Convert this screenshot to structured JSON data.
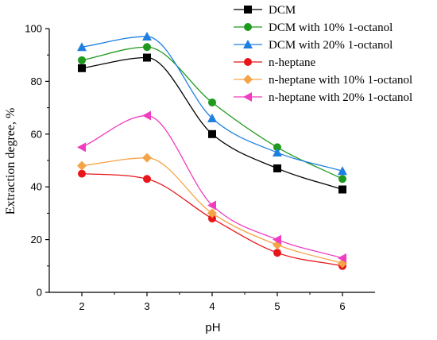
{
  "chart_data": {
    "type": "line",
    "xlabel": "pH",
    "ylabel": "Extraction degree, %",
    "x": [
      2,
      3,
      4,
      5,
      6
    ],
    "xlim": [
      1.5,
      6.5
    ],
    "ylim": [
      0,
      100
    ],
    "xticks": [
      "2",
      "3",
      "4",
      "5",
      "6"
    ],
    "yticks": [
      "0",
      "20",
      "40",
      "60",
      "80",
      "100"
    ],
    "grid": false,
    "legend_position": "top-right",
    "smooth": true,
    "series": [
      {
        "name": "DCM",
        "values": [
          85,
          89,
          60,
          47,
          39
        ],
        "color": "#000000",
        "marker": "square"
      },
      {
        "name": "DCM with 10% 1-octanol",
        "values": [
          88,
          93,
          72,
          55,
          43
        ],
        "color": "#1f9a1f",
        "marker": "circle"
      },
      {
        "name": "DCM with 20% 1-octanol",
        "values": [
          93,
          97,
          66,
          53,
          46
        ],
        "color": "#1e7fe0",
        "marker": "triangle-up"
      },
      {
        "name": "n-heptane",
        "values": [
          45,
          43,
          28,
          15,
          10
        ],
        "color": "#e8151b",
        "marker": "circle"
      },
      {
        "name": "n-heptane with 10% 1-octanol",
        "values": [
          48,
          51,
          30,
          18,
          11
        ],
        "color": "#f5a347",
        "marker": "diamond"
      },
      {
        "name": "n-heptane with 20% 1-octanol",
        "values": [
          55,
          67,
          33,
          20,
          13
        ],
        "color": "#f03cc0",
        "marker": "triangle-left"
      }
    ]
  }
}
